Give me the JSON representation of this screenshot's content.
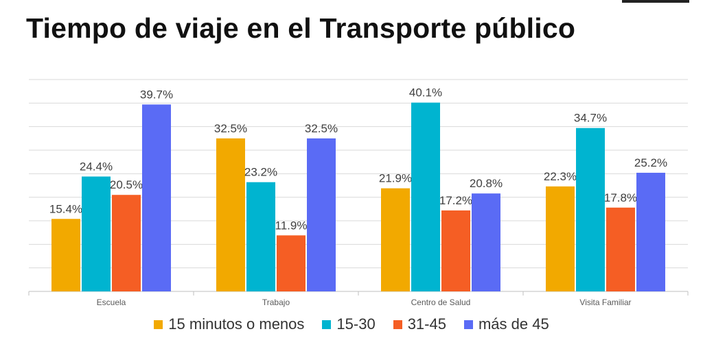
{
  "title": "Tiempo de viaje en el Transporte público",
  "chart_data": {
    "type": "bar",
    "title": "Tiempo de viaje en el Transporte público",
    "categories": [
      "Escuela",
      "Trabajo",
      "Centro de Salud",
      "Visita Familiar"
    ],
    "series": [
      {
        "name": "15 minutos o menos",
        "values": [
          15.4,
          32.5,
          21.9,
          22.3
        ],
        "labels": [
          "15.4%",
          "32.5%",
          "21.9%",
          "22.3%"
        ],
        "color": "#F2A900"
      },
      {
        "name": "15-30",
        "values": [
          24.4,
          23.2,
          40.1,
          34.7
        ],
        "labels": [
          "24.4%",
          "23.2%",
          "40.1%",
          "34.7%"
        ],
        "color": "#00B4D0"
      },
      {
        "name": "31-45",
        "values": [
          20.5,
          11.9,
          17.2,
          17.8
        ],
        "labels": [
          "20.5%",
          "11.9%",
          "17.2%",
          "17.8%"
        ],
        "color": "#F55E24"
      },
      {
        "name": "más de 45",
        "values": [
          39.7,
          32.5,
          20.8,
          25.2
        ],
        "labels": [
          "39.7%",
          "32.5%",
          "20.8%",
          "25.2%"
        ],
        "color": "#5A6BF5"
      }
    ],
    "ylim": [
      0,
      45
    ],
    "grid": true,
    "legend_position": "bottom"
  }
}
